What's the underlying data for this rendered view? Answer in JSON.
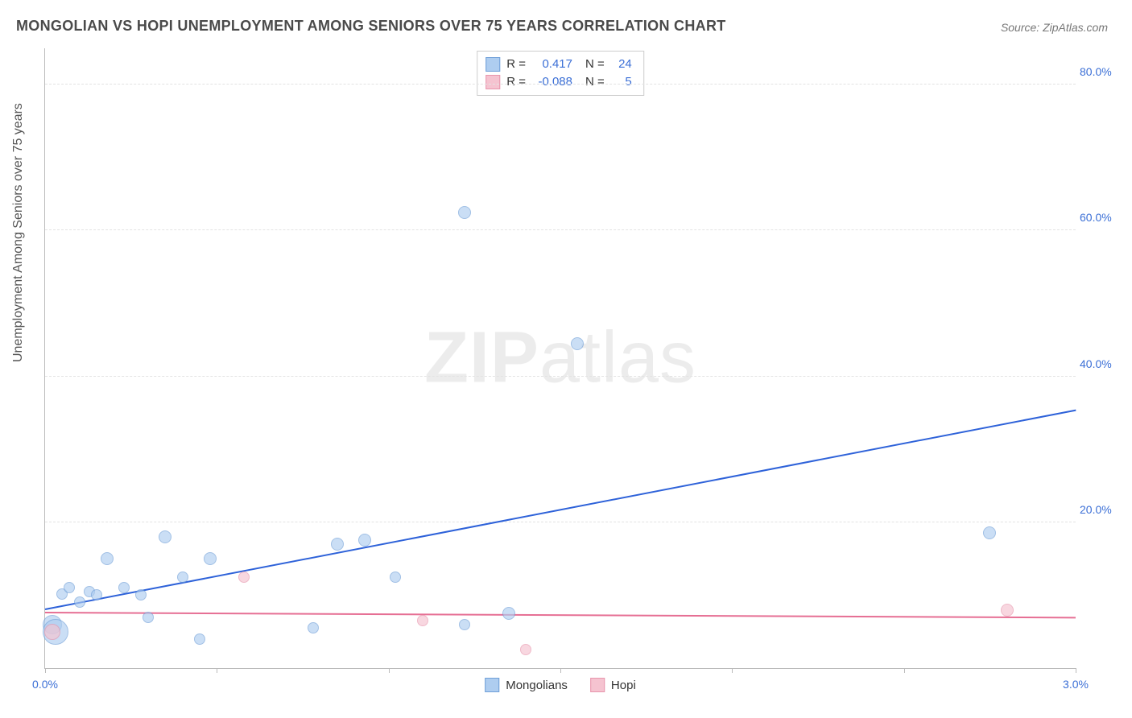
{
  "title": "MONGOLIAN VS HOPI UNEMPLOYMENT AMONG SENIORS OVER 75 YEARS CORRELATION CHART",
  "source": "Source: ZipAtlas.com",
  "ylabel": "Unemployment Among Seniors over 75 years",
  "watermark_bold": "ZIP",
  "watermark_rest": "atlas",
  "chart": {
    "type": "scatter",
    "background_color": "#ffffff",
    "grid_color": "#e3e3e3",
    "axis_color": "#bbbbbb",
    "text_color": "#555555",
    "tick_color": "#3b6fd6",
    "xlim": [
      0,
      3.0
    ],
    "ylim": [
      0,
      85
    ],
    "xticks": [
      {
        "v": 0.0,
        "label": "0.0%"
      },
      {
        "v": 1.0,
        "label": ""
      },
      {
        "v": 2.0,
        "label": ""
      },
      {
        "v": 3.0,
        "label": "3.0%"
      }
    ],
    "yticks": [
      {
        "v": 20,
        "label": "20.0%"
      },
      {
        "v": 40,
        "label": "40.0%"
      },
      {
        "v": 60,
        "label": "60.0%"
      },
      {
        "v": 80,
        "label": "80.0%"
      }
    ],
    "x_subticks": [
      0.5,
      1.5,
      2.5
    ],
    "series": [
      {
        "name": "Mongolians",
        "fill": "#aecdf0",
        "stroke": "#6f9fd8",
        "line_color": "#2e62d9",
        "opacity": 0.65,
        "R": "0.417",
        "N": "24",
        "trend": {
          "x1": 0.0,
          "y1": 8.0,
          "x2": 3.0,
          "y2": 35.3
        },
        "points": [
          {
            "x": 0.02,
            "y": 6.0,
            "r": 12
          },
          {
            "x": 0.03,
            "y": 5.0,
            "r": 16
          },
          {
            "x": 0.05,
            "y": 10.2,
            "r": 7
          },
          {
            "x": 0.07,
            "y": 11.0,
            "r": 7
          },
          {
            "x": 0.1,
            "y": 9.0,
            "r": 7
          },
          {
            "x": 0.13,
            "y": 10.5,
            "r": 7
          },
          {
            "x": 0.15,
            "y": 10.0,
            "r": 7
          },
          {
            "x": 0.18,
            "y": 15.0,
            "r": 8
          },
          {
            "x": 0.23,
            "y": 11.0,
            "r": 7
          },
          {
            "x": 0.28,
            "y": 10.0,
            "r": 7
          },
          {
            "x": 0.3,
            "y": 7.0,
            "r": 7
          },
          {
            "x": 0.35,
            "y": 18.0,
            "r": 8
          },
          {
            "x": 0.4,
            "y": 12.5,
            "r": 7
          },
          {
            "x": 0.45,
            "y": 4.0,
            "r": 7
          },
          {
            "x": 0.48,
            "y": 15.0,
            "r": 8
          },
          {
            "x": 0.78,
            "y": 5.5,
            "r": 7
          },
          {
            "x": 0.85,
            "y": 17.0,
            "r": 8
          },
          {
            "x": 0.93,
            "y": 17.5,
            "r": 8
          },
          {
            "x": 1.02,
            "y": 12.5,
            "r": 7
          },
          {
            "x": 1.22,
            "y": 6.0,
            "r": 7
          },
          {
            "x": 1.22,
            "y": 62.5,
            "r": 8
          },
          {
            "x": 1.35,
            "y": 7.5,
            "r": 8
          },
          {
            "x": 1.55,
            "y": 44.5,
            "r": 8
          },
          {
            "x": 2.75,
            "y": 18.5,
            "r": 8
          }
        ]
      },
      {
        "name": "Hopi",
        "fill": "#f5c3d0",
        "stroke": "#e895ac",
        "line_color": "#e66f94",
        "opacity": 0.65,
        "R": "-0.088",
        "N": "5",
        "trend": {
          "x1": 0.0,
          "y1": 7.5,
          "x2": 3.0,
          "y2": 6.8
        },
        "points": [
          {
            "x": 0.02,
            "y": 5.0,
            "r": 10
          },
          {
            "x": 0.58,
            "y": 12.5,
            "r": 7
          },
          {
            "x": 1.1,
            "y": 6.5,
            "r": 7
          },
          {
            "x": 1.4,
            "y": 2.5,
            "r": 7
          },
          {
            "x": 2.8,
            "y": 8.0,
            "r": 8
          }
        ]
      }
    ],
    "stats_labels": {
      "R": "R =",
      "N": "N ="
    },
    "legend_items": [
      {
        "label": "Mongolians",
        "fill": "#aecdf0",
        "stroke": "#6f9fd8"
      },
      {
        "label": "Hopi",
        "fill": "#f5c3d0",
        "stroke": "#e895ac"
      }
    ]
  }
}
